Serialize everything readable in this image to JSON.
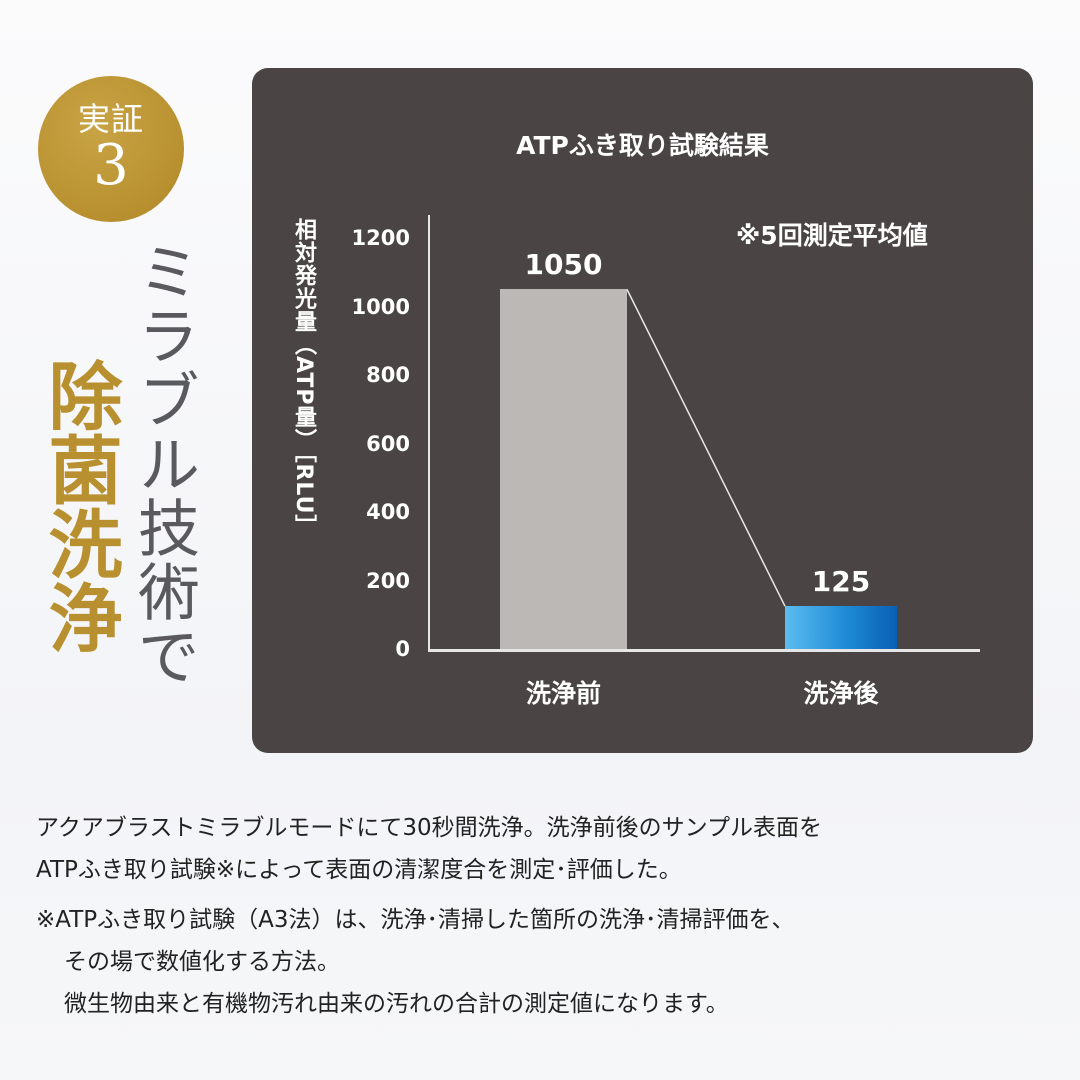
{
  "badge": {
    "line1": "実証",
    "line2": "3",
    "color": "#b8902f"
  },
  "headline": {
    "sub": "ミラブル技術で",
    "main": "除菌洗浄"
  },
  "chart_data": {
    "type": "bar",
    "title": "ATPふき取り試験結果",
    "note": "※5回測定平均値",
    "categories": [
      "洗浄前",
      "洗浄後"
    ],
    "values": [
      1050,
      125
    ],
    "value_labels": [
      "1050",
      "125"
    ],
    "ylabel": "相対発光量（ATP量）［RLU］",
    "xlabel": "",
    "ylim": [
      0,
      1200
    ],
    "yticks": [
      "1200",
      "1000",
      "800",
      "600",
      "400",
      "200",
      "0"
    ],
    "grid": false,
    "legend": "none",
    "bar_colors": [
      "#bcb8b6",
      "#1e8ad6"
    ],
    "connector_line": true
  },
  "description": {
    "line1": "アクアブラストミラブルモードにて30秒間洗浄。洗浄前後のサンプル表面を",
    "line2": "ATPふき取り試験※によって表面の清潔度合を測定･評価した。",
    "footnote1": "※ATPふき取り試験（A3法）は、洗浄･清掃した箇所の洗浄･清掃評価を、",
    "footnote2": "その場で数値化する方法。",
    "footnote3": "微生物由来と有機物汚れ由来の汚れの合計の測定値になります。"
  }
}
